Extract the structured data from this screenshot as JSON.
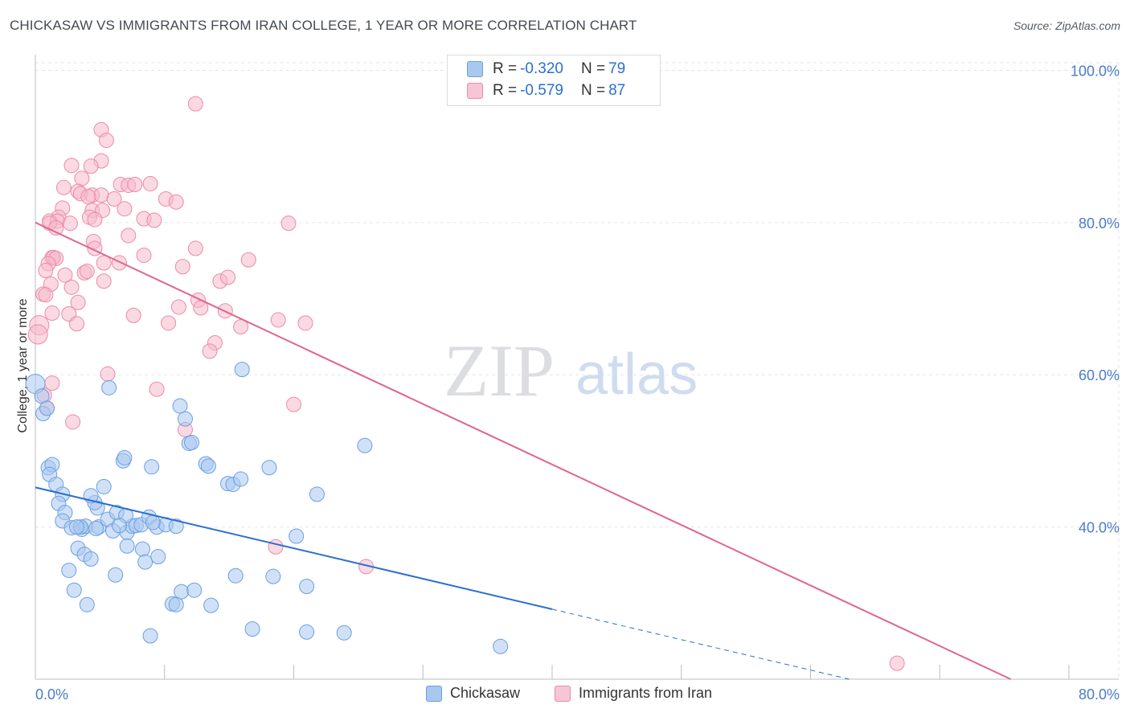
{
  "title": "CHICKASAW VS IMMIGRANTS FROM IRAN COLLEGE, 1 YEAR OR MORE CORRELATION CHART",
  "source": "Source: ZipAtlas.com",
  "watermark": {
    "zip": "ZIP",
    "atlas": "atlas"
  },
  "legend": {
    "rows": [
      {
        "r_label": "R =",
        "r_value": "-0.320",
        "n_label": "N =",
        "n_value": "79"
      },
      {
        "r_label": "R =",
        "r_value": "-0.579",
        "n_label": "N =",
        "n_value": "87"
      }
    ]
  },
  "colors": {
    "blue_fill": "#a9c8f0",
    "blue_stroke": "#6b9fe0",
    "blue_line": "#2a6fd0",
    "pink_fill": "#f6b9cc",
    "pink_stroke": "#ec8aa8",
    "pink_line": "#e0648d",
    "axis_text": "#4a7cc9",
    "value_text": "#2a6fd0"
  },
  "chart_data": {
    "type": "scatter",
    "title": "CHICKASAW VS IMMIGRANTS FROM IRAN COLLEGE, 1 YEAR OR MORE CORRELATION CHART",
    "xlabel": "",
    "ylabel": "College, 1 year or more",
    "xlim": [
      0,
      80
    ],
    "ylim": [
      20,
      101
    ],
    "x_tick_labels": [
      "0.0%",
      "80.0%"
    ],
    "y_tick_labels": [
      "100.0%",
      "80.0%",
      "60.0%",
      "40.0%"
    ],
    "y_ticks": [
      100,
      80,
      60,
      40
    ],
    "grid": true,
    "legend_position": "top-center",
    "series": [
      {
        "name": "Chickasaw",
        "color": "#a9c8f0",
        "r": -0.32,
        "n": 79,
        "trend": {
          "x0": 0,
          "y0": 45.2,
          "x1": 40,
          "y1": 29.2,
          "dash_to_x": 80,
          "dash_to_y": 13.2
        },
        "points": [
          [
            0,
            58.8
          ],
          [
            0.5,
            57.2
          ],
          [
            0.6,
            54.9
          ],
          [
            0.9,
            55.6
          ],
          [
            1,
            47.8
          ],
          [
            1.3,
            48.2
          ],
          [
            1.1,
            46.9
          ],
          [
            1.6,
            45.6
          ],
          [
            2.1,
            44.3
          ],
          [
            1.8,
            43.1
          ],
          [
            2.3,
            41.9
          ],
          [
            2.1,
            40.8
          ],
          [
            2.8,
            39.9
          ],
          [
            3.6,
            39.7
          ],
          [
            3.9,
            40.1
          ],
          [
            4.8,
            42.5
          ],
          [
            4.6,
            43.2
          ],
          [
            5.3,
            45.3
          ],
          [
            4.3,
            44.1
          ],
          [
            4.9,
            40.0
          ],
          [
            5.6,
            41.0
          ],
          [
            6.3,
            41.9
          ],
          [
            7.1,
            39.3
          ],
          [
            7.5,
            40.1
          ],
          [
            7.8,
            40.2
          ],
          [
            8.2,
            40.3
          ],
          [
            8.8,
            41.3
          ],
          [
            9.4,
            40.0
          ],
          [
            10.1,
            40.3
          ],
          [
            10.9,
            40.1
          ],
          [
            6.8,
            48.7
          ],
          [
            6.9,
            49.1
          ],
          [
            9.0,
            47.9
          ],
          [
            11.2,
            55.9
          ],
          [
            11.6,
            54.2
          ],
          [
            11.9,
            51.0
          ],
          [
            12.1,
            51.1
          ],
          [
            13.2,
            48.3
          ],
          [
            13.4,
            48.0
          ],
          [
            14.9,
            45.7
          ],
          [
            15.3,
            45.6
          ],
          [
            15.9,
            46.3
          ],
          [
            18.1,
            47.8
          ],
          [
            16.0,
            60.7
          ],
          [
            25.5,
            50.7
          ],
          [
            21.8,
            44.3
          ],
          [
            20.2,
            38.8
          ],
          [
            5.7,
            58.3
          ],
          [
            3.3,
            37.2
          ],
          [
            3.8,
            36.4
          ],
          [
            4.3,
            35.8
          ],
          [
            7.1,
            37.5
          ],
          [
            8.3,
            37.1
          ],
          [
            8.5,
            35.4
          ],
          [
            9.5,
            36.1
          ],
          [
            2.6,
            34.3
          ],
          [
            3.0,
            31.7
          ],
          [
            4.0,
            29.8
          ],
          [
            6.2,
            33.7
          ],
          [
            11.3,
            31.5
          ],
          [
            12.3,
            31.7
          ],
          [
            10.6,
            29.9
          ],
          [
            10.9,
            29.8
          ],
          [
            13.6,
            29.7
          ],
          [
            15.5,
            33.6
          ],
          [
            18.4,
            33.5
          ],
          [
            21.0,
            32.2
          ],
          [
            8.9,
            25.7
          ],
          [
            16.8,
            26.6
          ],
          [
            21.0,
            26.2
          ],
          [
            23.9,
            26.1
          ],
          [
            36.0,
            24.3
          ],
          [
            3.5,
            40.0
          ],
          [
            6.0,
            39.5
          ],
          [
            7.0,
            41.5
          ],
          [
            9.1,
            40.6
          ],
          [
            4.7,
            39.8
          ],
          [
            3.2,
            40.0
          ],
          [
            6.5,
            40.2
          ]
        ]
      },
      {
        "name": "Immigrants from Iran",
        "color": "#f6b9cc",
        "r": -0.579,
        "n": 87,
        "trend": {
          "x0": 0,
          "y0": 80.0,
          "x1": 75.5,
          "y1": 20.0
        },
        "points": [
          [
            12.4,
            95.6
          ],
          [
            5.1,
            92.2
          ],
          [
            5.5,
            90.8
          ],
          [
            5.1,
            88.1
          ],
          [
            2.8,
            87.5
          ],
          [
            4.3,
            87.4
          ],
          [
            3.6,
            85.8
          ],
          [
            6.6,
            85.0
          ],
          [
            7.2,
            84.9
          ],
          [
            7.7,
            85.0
          ],
          [
            2.2,
            84.6
          ],
          [
            3.3,
            84.1
          ],
          [
            3.5,
            83.8
          ],
          [
            4.4,
            83.6
          ],
          [
            5.1,
            83.6
          ],
          [
            4.1,
            83.4
          ],
          [
            6.1,
            83.1
          ],
          [
            10.1,
            83.1
          ],
          [
            10.9,
            82.7
          ],
          [
            2.1,
            81.9
          ],
          [
            6.9,
            81.8
          ],
          [
            4.4,
            81.6
          ],
          [
            5.2,
            81.6
          ],
          [
            1.8,
            80.7
          ],
          [
            4.2,
            80.7
          ],
          [
            8.4,
            80.5
          ],
          [
            4.6,
            80.4
          ],
          [
            9.2,
            80.3
          ],
          [
            1.1,
            80.2
          ],
          [
            1.7,
            80.2
          ],
          [
            1.1,
            79.9
          ],
          [
            2.7,
            79.9
          ],
          [
            19.6,
            79.9
          ],
          [
            1.6,
            79.3
          ],
          [
            7.2,
            78.3
          ],
          [
            4.5,
            77.5
          ],
          [
            4.6,
            76.6
          ],
          [
            12.4,
            76.6
          ],
          [
            8.4,
            75.7
          ],
          [
            1.3,
            75.4
          ],
          [
            1.4,
            75.4
          ],
          [
            1.6,
            75.3
          ],
          [
            16.5,
            75.1
          ],
          [
            5.3,
            74.7
          ],
          [
            6.5,
            74.7
          ],
          [
            1.0,
            74.6
          ],
          [
            11.4,
            74.2
          ],
          [
            0.8,
            73.7
          ],
          [
            3.8,
            73.4
          ],
          [
            2.3,
            73.1
          ],
          [
            4.0,
            73.6
          ],
          [
            5.3,
            72.3
          ],
          [
            14.3,
            72.3
          ],
          [
            14.9,
            72.8
          ],
          [
            1.2,
            71.9
          ],
          [
            2.8,
            71.5
          ],
          [
            0.6,
            70.6
          ],
          [
            0.8,
            70.5
          ],
          [
            12.6,
            69.8
          ],
          [
            11.1,
            68.9
          ],
          [
            3.3,
            69.5
          ],
          [
            12.8,
            68.8
          ],
          [
            14.7,
            68.4
          ],
          [
            1.3,
            68.1
          ],
          [
            2.6,
            68.0
          ],
          [
            7.6,
            67.8
          ],
          [
            18.8,
            67.2
          ],
          [
            20.9,
            66.8
          ],
          [
            10.3,
            66.8
          ],
          [
            3.2,
            66.7
          ],
          [
            15.9,
            66.3
          ],
          [
            0.3,
            66.5
          ],
          [
            0.2,
            65.3
          ],
          [
            13.9,
            64.2
          ],
          [
            13.5,
            63.1
          ],
          [
            5.6,
            60.1
          ],
          [
            1.3,
            58.9
          ],
          [
            9.4,
            58.1
          ],
          [
            0.7,
            57.3
          ],
          [
            20.0,
            56.1
          ],
          [
            0.9,
            55.6
          ],
          [
            2.9,
            53.8
          ],
          [
            11.6,
            52.8
          ],
          [
            18.6,
            37.4
          ],
          [
            25.6,
            34.8
          ],
          [
            66.7,
            22.1
          ],
          [
            8.9,
            85.1
          ]
        ]
      }
    ]
  },
  "bottom_legend": [
    "Chickasaw",
    "Immigrants from Iran"
  ]
}
